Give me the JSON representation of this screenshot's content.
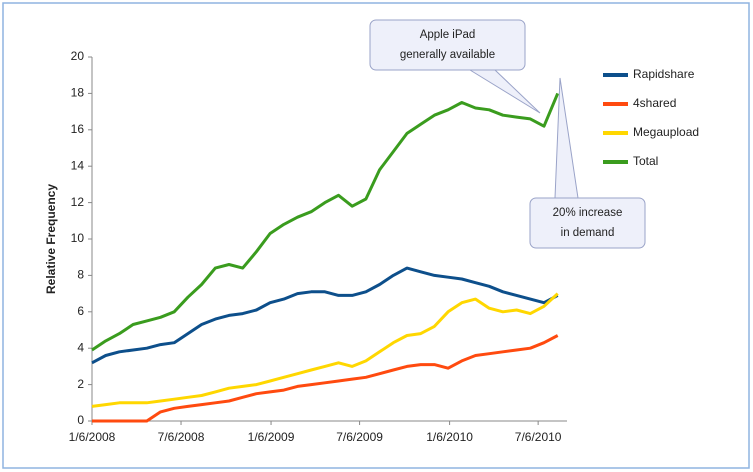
{
  "chart_data": {
    "type": "line",
    "y_label": "Relative Frequency",
    "x": [
      "1/6/2008",
      "2/3/2008",
      "3/2/2008",
      "3/30/2008",
      "4/27/2008",
      "5/25/2008",
      "6/22/2008",
      "7/20/2008",
      "8/17/2008",
      "9/14/2008",
      "10/12/2008",
      "11/9/2008",
      "12/7/2008",
      "1/4/2009",
      "2/1/2009",
      "3/1/2009",
      "3/29/2009",
      "4/26/2009",
      "5/24/2009",
      "6/21/2009",
      "7/19/2009",
      "8/16/2009",
      "9/13/2009",
      "10/11/2009",
      "11/8/2009",
      "12/6/2009",
      "1/3/2010",
      "1/31/2010",
      "2/28/2010",
      "3/28/2010",
      "4/25/2010",
      "5/23/2010",
      "6/20/2010",
      "7/18/2010",
      "8/15/2010"
    ],
    "series": [
      {
        "name": "Rapidshare",
        "color": "#0d4f8b",
        "values": [
          3.2,
          3.6,
          3.8,
          3.9,
          4.0,
          4.2,
          4.3,
          4.8,
          5.3,
          5.6,
          5.8,
          5.9,
          6.1,
          6.5,
          6.7,
          7.0,
          7.1,
          7.1,
          6.9,
          6.9,
          7.1,
          7.5,
          8.0,
          8.4,
          8.2,
          8.0,
          7.9,
          7.8,
          7.6,
          7.4,
          7.1,
          6.9,
          6.7,
          6.5,
          6.9
        ]
      },
      {
        "name": "4shared",
        "color": "#ff4a0f",
        "values": [
          0,
          0,
          0,
          0,
          0,
          0.5,
          0.7,
          0.8,
          0.9,
          1.0,
          1.1,
          1.3,
          1.5,
          1.6,
          1.7,
          1.9,
          2.0,
          2.1,
          2.2,
          2.3,
          2.4,
          2.6,
          2.8,
          3.0,
          3.1,
          3.1,
          2.9,
          3.3,
          3.6,
          3.7,
          3.8,
          3.9,
          4.0,
          4.3,
          4.7
        ]
      },
      {
        "name": "Megaupload",
        "color": "#ffd700",
        "values": [
          0.8,
          0.9,
          1.0,
          1.0,
          1.0,
          1.1,
          1.2,
          1.3,
          1.4,
          1.6,
          1.8,
          1.9,
          2.0,
          2.2,
          2.4,
          2.6,
          2.8,
          3.0,
          3.2,
          3.0,
          3.3,
          3.8,
          4.3,
          4.7,
          4.8,
          5.2,
          6.0,
          6.5,
          6.7,
          6.2,
          6.0,
          6.1,
          5.9,
          6.3,
          7.0
        ]
      },
      {
        "name": "Total",
        "color": "#3a9c1e",
        "values": [
          3.9,
          4.4,
          4.8,
          5.3,
          5.5,
          5.7,
          6.0,
          6.8,
          7.5,
          8.4,
          8.6,
          8.4,
          9.3,
          10.3,
          10.8,
          11.2,
          11.5,
          12.0,
          12.4,
          11.8,
          12.2,
          13.8,
          14.8,
          15.8,
          16.3,
          16.8,
          17.1,
          17.5,
          17.2,
          17.1,
          16.8,
          16.7,
          16.6,
          16.2,
          18.0
        ]
      }
    ],
    "xlim": [
      "1/6/2008",
      "9/3/2010"
    ],
    "xticks": [
      "1/6/2008",
      "7/6/2008",
      "1/6/2009",
      "7/6/2009",
      "1/6/2010",
      "7/6/2010"
    ],
    "ylim": [
      0,
      20
    ],
    "yticks": [
      0,
      2,
      4,
      6,
      8,
      10,
      12,
      14,
      16,
      18,
      20
    ],
    "legend": "right",
    "annotations": [
      {
        "lines": [
          "Apple iPad",
          "generally available"
        ]
      },
      {
        "lines": [
          "20% increase",
          "in demand"
        ]
      }
    ]
  }
}
